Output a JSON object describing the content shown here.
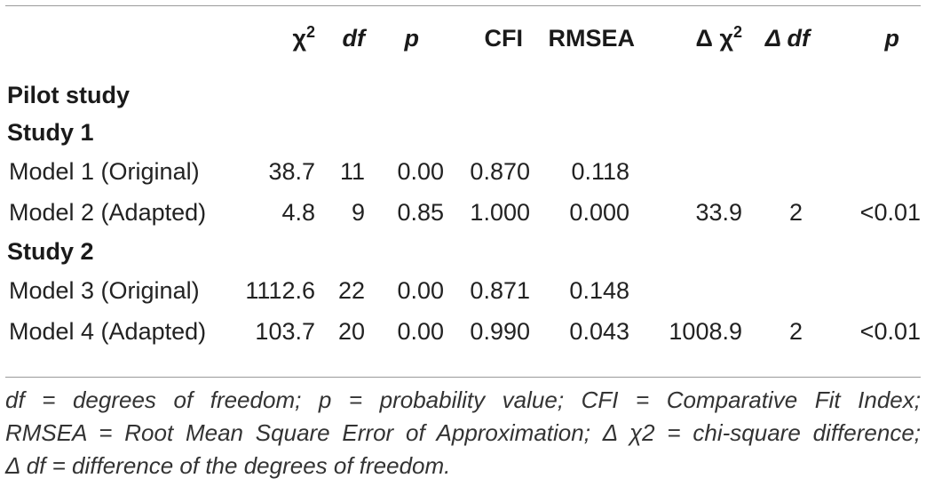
{
  "table": {
    "columns": [
      "",
      "χ",
      "df",
      "p",
      "CFI",
      "RMSEA",
      "Δ χ",
      "Δ df",
      "p"
    ],
    "chi_sup": "2",
    "sections": [
      {
        "title": "Pilot study",
        "rows": []
      },
      {
        "title": "Study 1",
        "rows": [
          [
            "Model 1 (Original)",
            "38.7",
            "11",
            "0.00",
            "0.870",
            "0.118",
            "",
            "",
            ""
          ],
          [
            "Model 2 (Adapted)",
            "4.8",
            "9",
            "0.85",
            "1.000",
            "0.000",
            "33.9",
            "2",
            "<0.01"
          ]
        ]
      },
      {
        "title": "Study 2",
        "rows": [
          [
            "Model 3 (Original)",
            "1112.6",
            "22",
            "0.00",
            "0.871",
            "0.148",
            "",
            "",
            ""
          ],
          [
            "Model 4 (Adapted)",
            "103.7",
            "20",
            "0.00",
            "0.990",
            "0.043",
            "1008.9",
            "2",
            "<0.01"
          ]
        ]
      }
    ]
  },
  "footnote": {
    "line1": "df = degrees of freedom; p = probability value; CFI = Comparative Fit Index;",
    "line2": "RMSEA = Root Mean Square Error of Approximation; Δ χ2 = chi-square difference;",
    "line3": "Δ df = difference of the degrees of freedom."
  }
}
